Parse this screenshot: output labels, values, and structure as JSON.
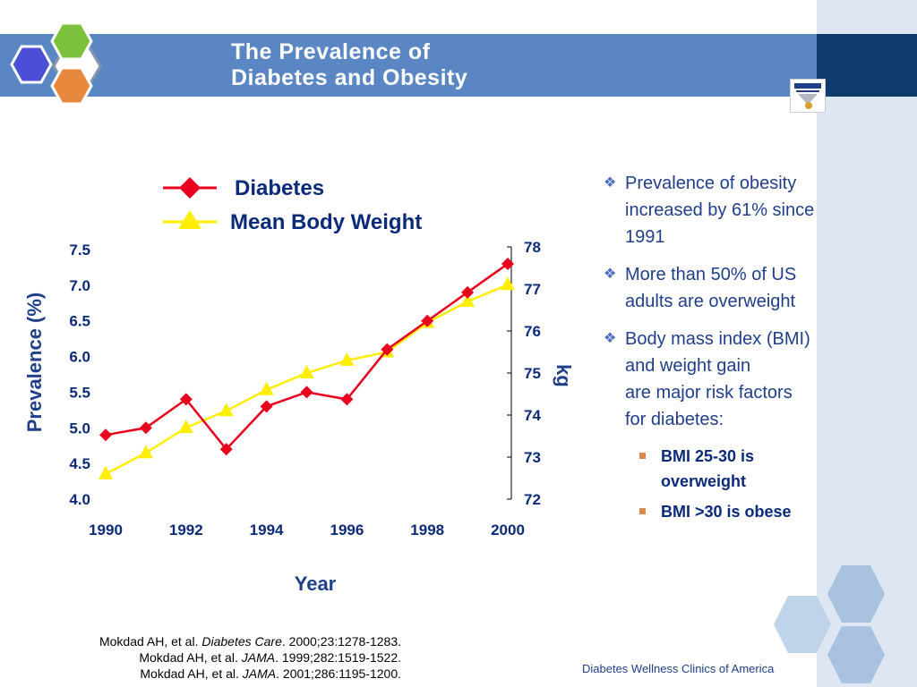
{
  "slide": {
    "title_lines": [
      "The Prevalence of",
      "Diabetes and Obesity"
    ],
    "colors": {
      "header": "#5a86c4",
      "header_dark": "#0f3a6e",
      "accent_band": "#dde6f1",
      "text": "#1f3f8a"
    }
  },
  "bullets": [
    {
      "lines": [
        "Prevalence of obesity",
        "increased by 61% since",
        "1991"
      ]
    },
    {
      "lines": [
        "More than 50% of US",
        "adults are overweight"
      ]
    },
    {
      "lines": [
        "Body mass index (BMI)",
        "and weight gain",
        "are major risk factors",
        "for diabetes:"
      ],
      "subbullets": [
        {
          "lines": [
            "BMI 25-30 is",
            "overweight"
          ]
        },
        {
          "lines": [
            "BMI >30 is obese"
          ]
        }
      ]
    }
  ],
  "citations": [
    {
      "author": "Mokdad AH, et al. ",
      "journal": "Diabetes Care",
      "rest": ". 2000;23:1278-1283."
    },
    {
      "author": "Mokdad AH, et al. ",
      "journal": "JAMA",
      "rest": ". 1999;282:1519-1522."
    },
    {
      "author": "Mokdad AH, et al. ",
      "journal": "JAMA",
      "rest": ". 2001;286:1195-1200."
    }
  ],
  "footer": {
    "org": "Diabetes Wellness Clinics of America"
  },
  "chart_data": {
    "type": "line",
    "xlabel": "Year",
    "ylabel": "Prevalence (%)",
    "y2label": "kg",
    "x": [
      1990,
      1991,
      1992,
      1993,
      1994,
      1995,
      1996,
      1997,
      1998,
      1999,
      2000
    ],
    "x_tick_labels": [
      "1990",
      "1992",
      "1994",
      "1996",
      "1998",
      "2000"
    ],
    "x_tick_values": [
      1990,
      1992,
      1994,
      1996,
      1998,
      2000
    ],
    "ylim": [
      4.0,
      7.5
    ],
    "y_tick_labels": [
      "4.0",
      "4.5",
      "5.0",
      "5.5",
      "6.0",
      "6.5",
      "7.0",
      "7.5"
    ],
    "y2lim": [
      72,
      78
    ],
    "y2_tick_labels": [
      "72",
      "73",
      "74",
      "75",
      "76",
      "77",
      "78"
    ],
    "legend_position": "top",
    "grid": false,
    "series": [
      {
        "name": "Diabetes",
        "axis": "left",
        "color": "#e8001c",
        "marker": "diamond",
        "values": [
          4.9,
          5.0,
          5.4,
          4.7,
          5.3,
          5.5,
          5.4,
          6.1,
          6.5,
          6.9,
          7.3
        ]
      },
      {
        "name": "Mean Body Weight",
        "axis": "right",
        "color": "#ffee00",
        "marker": "triangle",
        "values": [
          72.6,
          73.1,
          73.7,
          74.1,
          74.6,
          75.0,
          75.3,
          75.5,
          76.2,
          76.7,
          77.1
        ]
      }
    ]
  }
}
